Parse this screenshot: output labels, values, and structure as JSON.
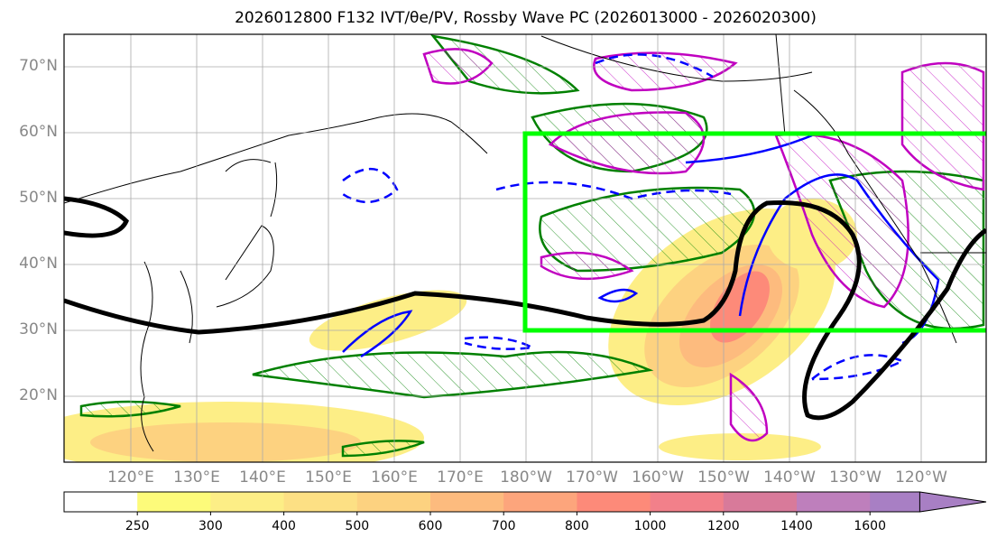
{
  "title": "2026012800 F132 IVT/θe/PV, Rossby Wave PC (2026013000 - 2026020300)",
  "lat_labels": [
    "70°N",
    "60°N",
    "50°N",
    "40°N",
    "30°N",
    "20°N"
  ],
  "lon_labels": [
    "120°E",
    "130°E",
    "140°E",
    "150°E",
    "160°E",
    "170°E",
    "180°W",
    "170°W",
    "160°W",
    "150°W",
    "140°W",
    "130°W",
    "120°W"
  ],
  "colorbar": {
    "ticks": [
      "250",
      "300",
      "400",
      "500",
      "600",
      "700",
      "800",
      "1000",
      "1200",
      "1400",
      "1600"
    ],
    "colors": [
      "#ffffff",
      "#fdfb7a",
      "#fdee86",
      "#fde084",
      "#fdd280",
      "#fdbb7e",
      "#fda57c",
      "#fd8a79",
      "#f2808a",
      "#d87a9a",
      "#be7fbc",
      "#a87fc4"
    ]
  },
  "colors": {
    "box": "#00ff00",
    "theta_e": "#008000",
    "pv_pos": "#0000ff",
    "pv": "#c000c0",
    "wave": "#000000"
  }
}
